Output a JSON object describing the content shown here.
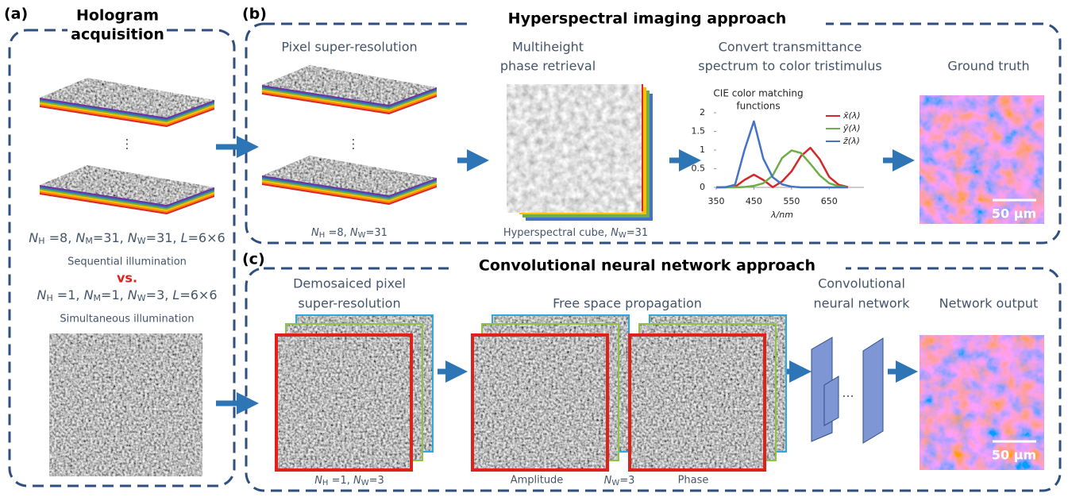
{
  "panel_a": {
    "label": "(a)",
    "title_lines": [
      "Hologram",
      "acquisition"
    ],
    "ellipsis": "⋮",
    "sequential_params": [
      "N",
      "H",
      " =8, ",
      "N",
      "M",
      "=31, ",
      "N",
      "W",
      "=31, ",
      "L",
      "=6×6"
    ],
    "sequential_label": "Sequential illumination",
    "vs": "vs.",
    "simultaneous_params": [
      "N",
      "H",
      " =1, ",
      "N",
      "M",
      "=1, ",
      "N",
      "W",
      "=3, ",
      "L",
      "=6×6"
    ],
    "simultaneous_label": "Simultaneous illumination"
  },
  "panel_b": {
    "label": "(b)",
    "title": "Hyperspectral imaging approach",
    "step1_title": "Pixel super-resolution",
    "step1_params": [
      "N",
      "H",
      " =8, ",
      "N",
      "W",
      "=31"
    ],
    "step2_title_lines": [
      "Multiheight",
      "phase retrieval"
    ],
    "step2_caption": [
      "Hyperspectral cube, ",
      "N",
      "W",
      "=31"
    ],
    "step3_title_lines": [
      "Convert transmittance",
      "spectrum to color tristimulus"
    ],
    "step4_title": "Ground truth",
    "scale_bar": "50 µm"
  },
  "panel_c": {
    "label": "(c)",
    "title": "Convolutional neural network approach",
    "step1_title_lines": [
      "Demosaiced pixel",
      "super-resolution"
    ],
    "step1_params": [
      "N",
      "H",
      " =1, ",
      "N",
      "W",
      "=3"
    ],
    "step2_title": "Free space propagation",
    "amplitude": "Amplitude",
    "phase": "Phase",
    "step2_params": [
      "N",
      "W",
      "=3"
    ],
    "step3_title_lines": [
      "Convolutional",
      "neural network"
    ],
    "nn_dots": "···",
    "step4_title": "Network output",
    "scale_bar": "50 µm"
  },
  "chart_data": {
    "type": "line",
    "title_lines": [
      "CIE color matching",
      "functions"
    ],
    "x_label": "λ/nm",
    "x": [
      350,
      375,
      400,
      425,
      450,
      475,
      500,
      525,
      550,
      575,
      600,
      625,
      650,
      675,
      700
    ],
    "series": [
      {
        "name": "x̄(λ)",
        "color": "#d62728",
        "values": [
          0,
          0.002,
          0.014,
          0.2,
          0.34,
          0.2,
          0.005,
          0.16,
          0.43,
          0.84,
          1.06,
          0.75,
          0.28,
          0.07,
          0.01
        ]
      },
      {
        "name": "ȳ(λ)",
        "color": "#70ad47",
        "values": [
          0,
          0,
          0,
          0.01,
          0.04,
          0.11,
          0.32,
          0.79,
          0.99,
          0.92,
          0.63,
          0.32,
          0.11,
          0.03,
          0.004
        ]
      },
      {
        "name": "z̄(λ)",
        "color": "#4472c4",
        "values": [
          0,
          0.007,
          0.07,
          1.0,
          1.77,
          0.77,
          0.27,
          0.08,
          0.02,
          0,
          0,
          0,
          0,
          0,
          0
        ]
      }
    ],
    "xlim": [
      350,
      700
    ],
    "ylim": [
      0,
      2
    ],
    "xticks": [
      350,
      450,
      550,
      650
    ],
    "yticks": [
      0,
      0.5,
      1,
      1.5,
      2
    ]
  }
}
